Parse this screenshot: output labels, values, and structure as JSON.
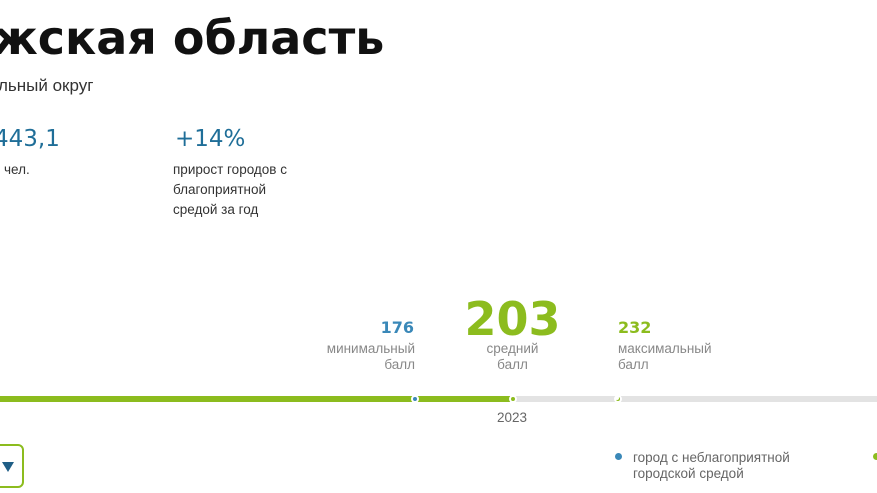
{
  "header": {
    "title": "жская область",
    "district": "льный округ"
  },
  "stats": [
    {
      "value": "443,1",
      "label": "чел."
    },
    {
      "value": "+14%",
      "label": "прирост городов с благоприятной средой за год"
    }
  ],
  "scores": {
    "min": {
      "value": "176",
      "label_line1": "минимальный",
      "label_line2": "балл"
    },
    "avg": {
      "value": "203",
      "label_line1": "средний",
      "label_line2": "балл"
    },
    "max": {
      "value": "232",
      "label_line1": "максимальный",
      "label_line2": "балл"
    }
  },
  "timeline": {
    "year": "2023",
    "fill_fraction": 0.585
  },
  "legend": {
    "unfavorable_line1": "город с неблагоприятной",
    "unfavorable_line2": "городской средой"
  },
  "colors": {
    "accent_green": "#8cbc1e",
    "accent_blue": "#3a88b8",
    "stat_blue": "#1f6e98"
  },
  "icons": {
    "dropdown": "chevron-down-icon"
  }
}
